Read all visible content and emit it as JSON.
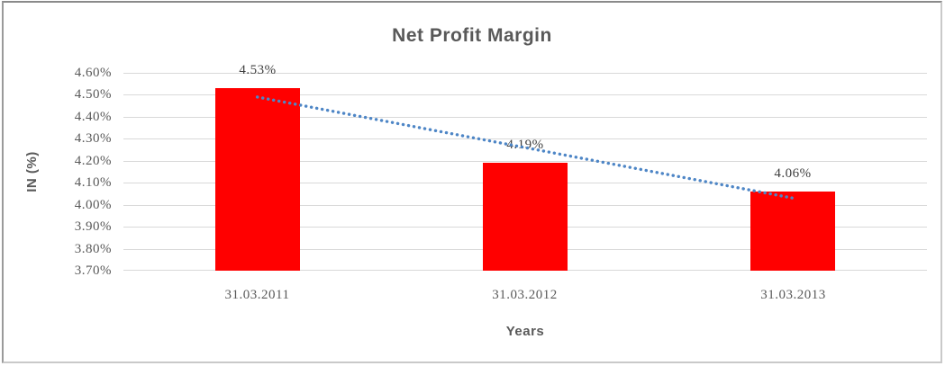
{
  "frame": {
    "background": "#ffffff",
    "border_dark": "#8a8a8a",
    "border_light": "#c9c9c9"
  },
  "chart_data": {
    "type": "bar",
    "title": "Net Profit Margin",
    "xlabel": "Years",
    "ylabel": "IN (%)",
    "categories": [
      "31.03.2011",
      "31.03.2012",
      "31.03.2013"
    ],
    "values": [
      4.53,
      4.19,
      4.06
    ],
    "data_labels": [
      "4.53%",
      "4.19%",
      "4.06%"
    ],
    "ylim": [
      3.7,
      4.6
    ],
    "ytick_step": 0.1,
    "ytick_labels": [
      "4.60%",
      "4.50%",
      "4.40%",
      "4.30%",
      "4.20%",
      "4.10%",
      "4.00%",
      "3.90%",
      "3.80%",
      "3.70%"
    ],
    "grid": true,
    "legend": "none",
    "bar_color": "#ff0000",
    "gridline_color": "#d9d9d9",
    "text_color": "#595959",
    "data_label_color": "#3f3f3f",
    "trendline": {
      "type": "linear",
      "style": "dotted",
      "color": "#4e86c6",
      "start_value": 4.49,
      "end_value": 4.03
    }
  }
}
